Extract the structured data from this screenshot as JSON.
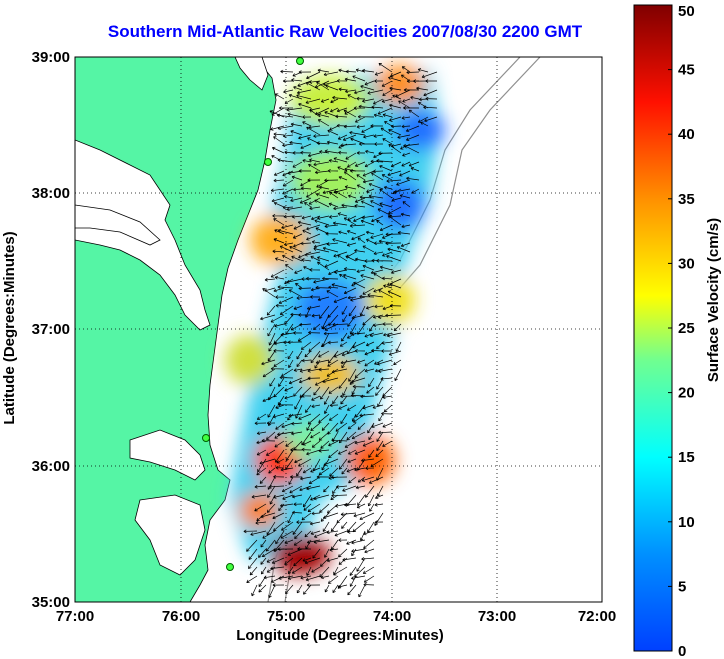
{
  "title": "Southern Mid-Atlantic Raw Velocities 2007/08/30 2200 GMT",
  "map": {
    "xlabel": "Longitude (Degrees:Minutes)",
    "ylabel": "Latitude (Degrees:Minutes)",
    "x_ticks": [
      "77:00",
      "76:00",
      "75:00",
      "74:00",
      "73:00",
      "72:00"
    ],
    "y_ticks": [
      "39:00",
      "38:00",
      "37:00",
      "36:00",
      "35:00"
    ],
    "land_color": "#55f5a5",
    "title_color": "#0000ff",
    "grid": "dotted"
  },
  "colorbar": {
    "label": "Surface Velocity (cm/s)",
    "ticks": [
      "50",
      "45",
      "40",
      "35",
      "30",
      "25",
      "20",
      "15",
      "10",
      "5",
      "0"
    ],
    "min": 0,
    "max": 50,
    "colormap": "jet"
  }
}
